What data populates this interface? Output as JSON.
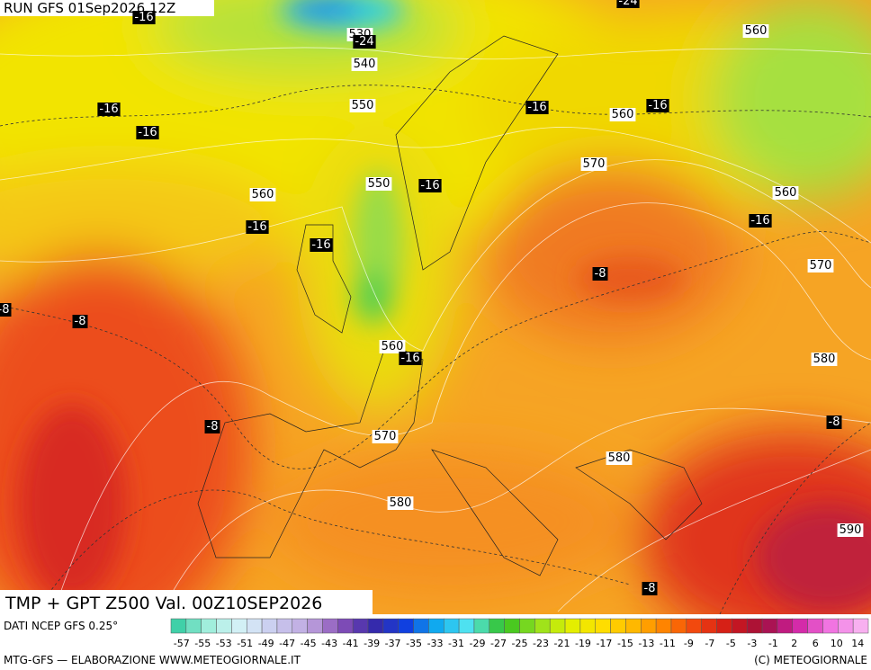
{
  "header": {
    "run": "RUN GFS 01Sep2026 12Z"
  },
  "title": "TMP + GPT Z500 Val. 00Z10SEP2026",
  "source": "DATI NCEP GFS 0.25°",
  "credit_left": "MTG-GFS — ELABORAZIONE WWW.METEOGIORNALE.IT",
  "credit_right": "(C) METEOGIORNALE",
  "map": {
    "height_labels": [
      "530",
      "540",
      "550",
      "560",
      "560",
      "570",
      "550",
      "560",
      "560",
      "570",
      "560",
      "580",
      "570",
      "580",
      "580",
      "590"
    ],
    "temp_labels": [
      "-24",
      "-24",
      "-16",
      "-16",
      "-16",
      "-16",
      "-16",
      "-16",
      "-16",
      "-16",
      "-16",
      "-8",
      "-8",
      "-8",
      "-16",
      "-8",
      "-8",
      "-8"
    ]
  },
  "color_scale": {
    "labels": [
      -57,
      -55,
      -53,
      -51,
      -49,
      -47,
      -45,
      -43,
      -41,
      -39,
      -37,
      -35,
      -33,
      -31,
      -29,
      -27,
      -25,
      -23,
      -21,
      -19,
      -17,
      -15,
      -13,
      -11,
      -9,
      -7,
      -5,
      -3,
      -1,
      2,
      6,
      10,
      14
    ]
  }
}
